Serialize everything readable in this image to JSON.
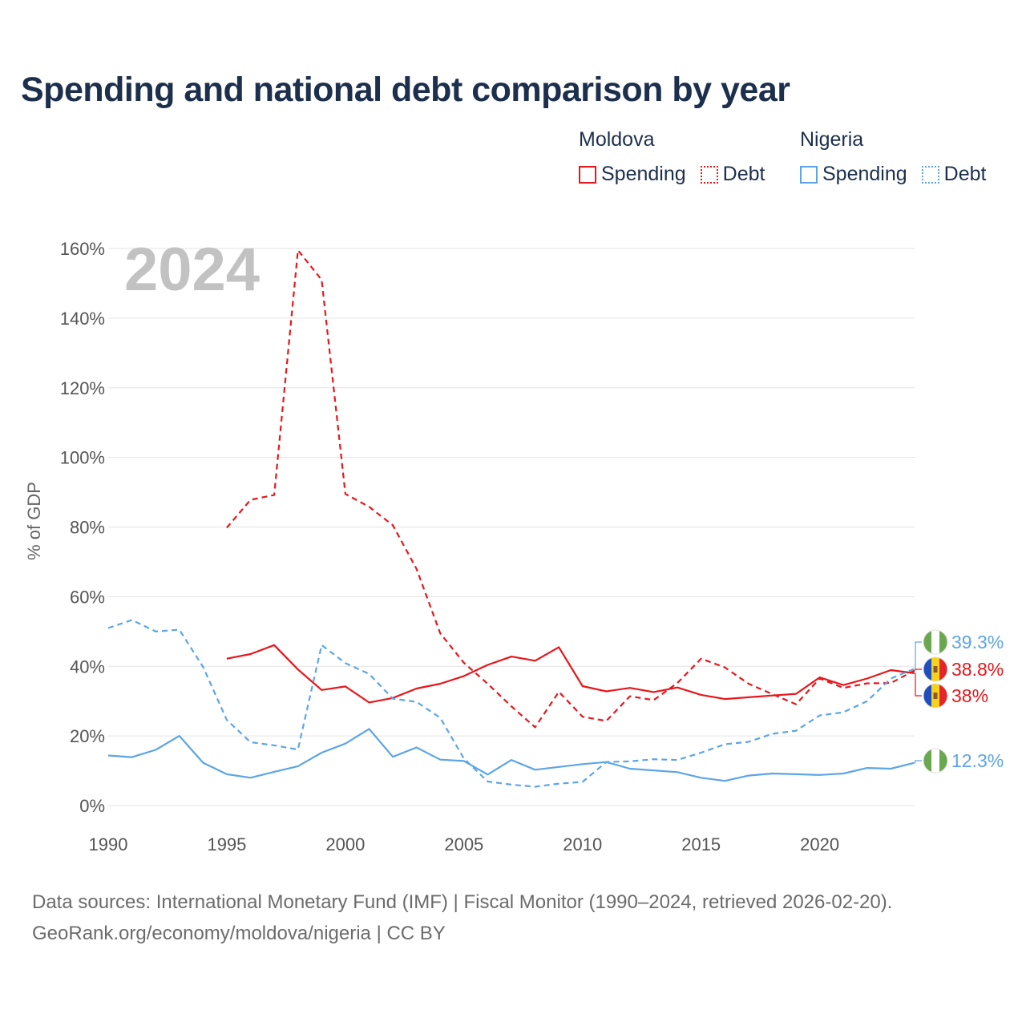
{
  "title": "Spending and national debt comparison by year",
  "legend": {
    "groups": [
      {
        "country": "Moldova",
        "color": "#e8161b",
        "items": [
          {
            "label": "Spending",
            "style": "solid"
          },
          {
            "label": "Debt",
            "style": "dotted"
          }
        ]
      },
      {
        "country": "Nigeria",
        "color": "#5da5e5",
        "items": [
          {
            "label": "Spending",
            "style": "solid"
          },
          {
            "label": "Debt",
            "style": "dotted"
          }
        ]
      }
    ]
  },
  "footer": {
    "line1": "Data sources: International Monetary Fund (IMF) | Fiscal Monitor (1990–2024, retrieved 2026-02-20).",
    "line2": "GeoRank.org/economy/moldova/nigeria | CC BY"
  },
  "chart_data": {
    "type": "line",
    "title": "Spending and national debt comparison by year",
    "watermark_year": "2024",
    "xlabel": "",
    "ylabel": "% of GDP",
    "xlim": [
      1990,
      2024
    ],
    "ylim": [
      0,
      160
    ],
    "x_ticks": [
      1990,
      1995,
      2000,
      2005,
      2010,
      2015,
      2020
    ],
    "y_ticks": [
      0,
      20,
      40,
      60,
      80,
      100,
      120,
      140,
      160
    ],
    "y_tick_labels": [
      "0%",
      "20%",
      "40%",
      "60%",
      "80%",
      "100%",
      "120%",
      "140%",
      "160%"
    ],
    "grid": true,
    "series": [
      {
        "name": "Moldova Spending",
        "country": "Moldova",
        "measure": "Spending",
        "color": "#e8161b",
        "style": "solid",
        "x": [
          1995,
          1996,
          1997,
          1998,
          1999,
          2000,
          2001,
          2002,
          2003,
          2004,
          2005,
          2006,
          2007,
          2008,
          2009,
          2010,
          2011,
          2012,
          2013,
          2014,
          2015,
          2016,
          2017,
          2018,
          2019,
          2020,
          2021,
          2022,
          2023,
          2024
        ],
        "values": [
          42.2,
          43.5,
          46.1,
          39.1,
          33.2,
          34.2,
          29.6,
          30.9,
          33.6,
          35.0,
          37.2,
          40.4,
          42.8,
          41.6,
          45.5,
          34.3,
          32.8,
          33.8,
          32.6,
          33.9,
          31.8,
          30.6,
          31.1,
          31.6,
          32.1,
          36.8,
          34.6,
          36.5,
          38.9,
          38.0
        ]
      },
      {
        "name": "Moldova Debt",
        "country": "Moldova",
        "measure": "Debt",
        "color": "#e8161b",
        "style": "dashed",
        "x": [
          1995,
          1996,
          1997,
          1998,
          1999,
          2000,
          2001,
          2002,
          2003,
          2004,
          2005,
          2006,
          2007,
          2008,
          2009,
          2010,
          2011,
          2012,
          2013,
          2014,
          2015,
          2016,
          2017,
          2018,
          2019,
          2020,
          2021,
          2022,
          2023,
          2024
        ],
        "values": [
          79.8,
          87.8,
          89.2,
          159.5,
          151.0,
          89.5,
          85.8,
          80.5,
          68.0,
          49.5,
          41.0,
          35.0,
          28.5,
          22.5,
          32.7,
          25.5,
          24.3,
          31.4,
          30.3,
          35.2,
          42.2,
          39.7,
          35.0,
          32.0,
          29.1,
          36.5,
          33.8,
          35.1,
          35.2,
          38.8
        ]
      },
      {
        "name": "Nigeria Spending",
        "country": "Nigeria",
        "measure": "Spending",
        "color": "#5da5e5",
        "style": "solid",
        "x": [
          1990,
          1991,
          1992,
          1993,
          1994,
          1995,
          1996,
          1997,
          1998,
          1999,
          2000,
          2001,
          2002,
          2003,
          2004,
          2005,
          2006,
          2007,
          2008,
          2009,
          2010,
          2011,
          2012,
          2013,
          2014,
          2015,
          2016,
          2017,
          2018,
          2019,
          2020,
          2021,
          2022,
          2023,
          2024
        ],
        "values": [
          14.4,
          13.9,
          16.0,
          20.0,
          12.3,
          9.0,
          8.0,
          9.7,
          11.3,
          15.2,
          17.8,
          22.0,
          14.0,
          16.7,
          13.2,
          12.8,
          8.9,
          13.1,
          10.3,
          11.1,
          11.9,
          12.5,
          10.6,
          10.1,
          9.6,
          8.0,
          7.1,
          8.6,
          9.2,
          9.0,
          8.8,
          9.2,
          10.8,
          10.6,
          12.3
        ]
      },
      {
        "name": "Nigeria Debt",
        "country": "Nigeria",
        "measure": "Debt",
        "color": "#5da5e5",
        "style": "dashed",
        "x": [
          1990,
          1991,
          1992,
          1993,
          1994,
          1995,
          1996,
          1997,
          1998,
          1999,
          2000,
          2001,
          2002,
          2003,
          2004,
          2005,
          2006,
          2007,
          2008,
          2009,
          2010,
          2011,
          2012,
          2013,
          2014,
          2015,
          2016,
          2017,
          2018,
          2019,
          2020,
          2021,
          2022,
          2023,
          2024
        ],
        "values": [
          51.0,
          53.3,
          50.0,
          50.5,
          39.8,
          24.6,
          18.2,
          17.3,
          16.1,
          46.1,
          40.9,
          37.8,
          30.7,
          29.8,
          25.2,
          13.5,
          6.9,
          6.0,
          5.4,
          6.3,
          6.8,
          12.5,
          12.7,
          13.3,
          13.1,
          15.2,
          17.6,
          18.3,
          20.6,
          21.5,
          25.9,
          26.8,
          30.0,
          36.5,
          39.3
        ]
      }
    ],
    "end_labels": [
      {
        "text": "39.3%",
        "country": "Nigeria",
        "value": 39.3,
        "color": "#5da5e5"
      },
      {
        "text": "38.8%",
        "country": "Moldova",
        "value": 38.8,
        "color": "#e8161b"
      },
      {
        "text": "38%",
        "country": "Moldova",
        "value": 38.0,
        "color": "#e8161b"
      },
      {
        "text": "12.3%",
        "country": "Nigeria",
        "value": 12.3,
        "color": "#5da5e5"
      }
    ]
  }
}
